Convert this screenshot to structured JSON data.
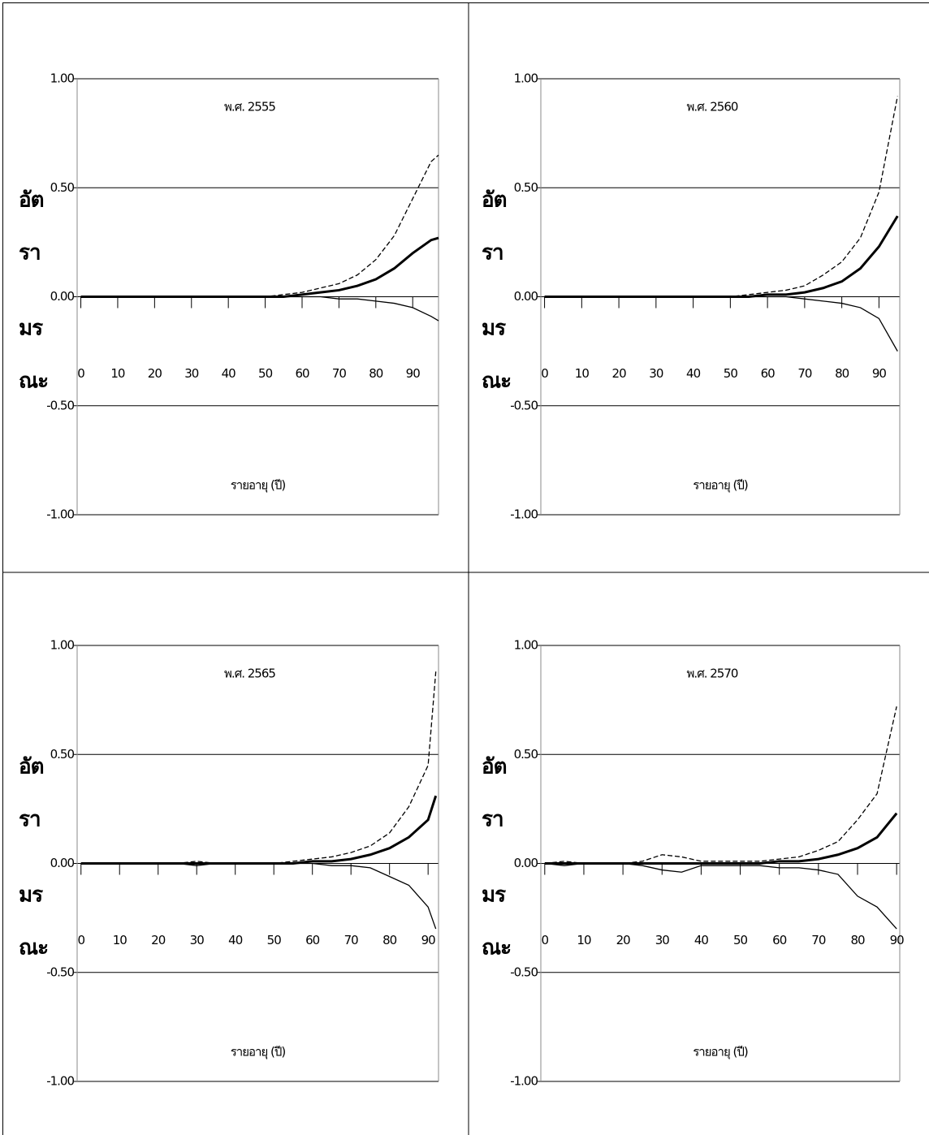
{
  "chart_data": [
    {
      "type": "line",
      "title": "พ.ศ. 2555",
      "xlabel": "รายอายุ (ปี)",
      "ylabel_lines": [
        "อัต",
        "รา",
        "มร",
        "ณะ"
      ],
      "x": [
        0,
        5,
        10,
        15,
        20,
        25,
        30,
        35,
        40,
        45,
        50,
        55,
        60,
        65,
        70,
        75,
        80,
        85,
        90,
        95,
        97
      ],
      "xlim": [
        -1,
        97
      ],
      "xticks": [
        0,
        10,
        20,
        30,
        40,
        50,
        60,
        70,
        80,
        90
      ],
      "ylim": [
        -1,
        1
      ],
      "yticks": [
        {
          "value": -1,
          "label": "-1.00"
        },
        {
          "value": -0.5,
          "label": "-0.50"
        },
        {
          "value": 0,
          "label": "0.00"
        },
        {
          "value": 0.5,
          "label": "0.50"
        },
        {
          "value": 1,
          "label": "1.00"
        }
      ],
      "grid": true,
      "series": [
        {
          "color": "#000000",
          "line_style": "dashed",
          "values": [
            0,
            0,
            0,
            0,
            0,
            0,
            0,
            0,
            0,
            0,
            0,
            0.01,
            0.02,
            0.04,
            0.06,
            0.1,
            0.17,
            0.28,
            0.45,
            0.62,
            0.65
          ]
        },
        {
          "color": "#000000",
          "line_style": "thick",
          "values": [
            0,
            0,
            0,
            0,
            0,
            0,
            0,
            0,
            0,
            0,
            0,
            0,
            0.01,
            0.02,
            0.03,
            0.05,
            0.08,
            0.13,
            0.2,
            0.26,
            0.27
          ]
        },
        {
          "color": "#000000",
          "line_style": "thin",
          "values": [
            0,
            0,
            0,
            0,
            0,
            0,
            0,
            0,
            0,
            0,
            0,
            0,
            0,
            0,
            -0.01,
            -0.01,
            -0.02,
            -0.03,
            -0.05,
            -0.09,
            -0.11
          ]
        }
      ]
    },
    {
      "type": "line",
      "title": "พ.ศ. 2560",
      "xlabel": "รายอายุ (ปี)",
      "ylabel_lines": [
        "อัต",
        "รา",
        "มร",
        "ณะ"
      ],
      "x": [
        0,
        5,
        10,
        15,
        20,
        25,
        30,
        35,
        40,
        45,
        50,
        55,
        60,
        65,
        70,
        75,
        80,
        85,
        90,
        95
      ],
      "xlim": [
        -1,
        95.6
      ],
      "xticks": [
        0,
        10,
        20,
        30,
        40,
        50,
        60,
        70,
        80,
        90
      ],
      "ylim": [
        -1,
        1
      ],
      "yticks": [
        {
          "value": -1,
          "label": "-1.00"
        },
        {
          "value": -0.5,
          "label": "-0.50"
        },
        {
          "value": 0,
          "label": "0.00"
        },
        {
          "value": 0.5,
          "label": "0.50"
        },
        {
          "value": 1,
          "label": "1.00"
        }
      ],
      "grid": true,
      "series": [
        {
          "color": "#000000",
          "line_style": "dashed",
          "values": [
            0,
            0,
            0,
            0,
            0,
            0,
            0,
            0,
            0,
            0,
            0,
            0.01,
            0.02,
            0.03,
            0.05,
            0.1,
            0.16,
            0.27,
            0.48,
            0.92
          ]
        },
        {
          "color": "#000000",
          "line_style": "thick",
          "values": [
            0,
            0,
            0,
            0,
            0,
            0,
            0,
            0,
            0,
            0,
            0,
            0,
            0.01,
            0.01,
            0.02,
            0.04,
            0.07,
            0.13,
            0.23,
            0.37
          ]
        },
        {
          "color": "#000000",
          "line_style": "thin",
          "values": [
            0,
            0,
            0,
            0,
            0,
            0,
            0,
            0,
            0,
            0,
            0,
            0,
            0,
            0,
            -0.01,
            -0.02,
            -0.03,
            -0.05,
            -0.1,
            -0.25
          ]
        }
      ]
    },
    {
      "type": "line",
      "title": "พ.ศ. 2565",
      "xlabel": "รายอายุ (ปี)",
      "ylabel_lines": [
        "อัต",
        "รา",
        "มร",
        "ณะ"
      ],
      "x": [
        0,
        5,
        10,
        15,
        20,
        25,
        30,
        35,
        40,
        45,
        50,
        55,
        60,
        65,
        70,
        75,
        80,
        85,
        90,
        92
      ],
      "xlim": [
        -1,
        92.7
      ],
      "xticks": [
        0,
        10,
        20,
        30,
        40,
        50,
        60,
        70,
        80,
        90
      ],
      "ylim": [
        -1,
        1
      ],
      "yticks": [
        {
          "value": -1,
          "label": "-1.00"
        },
        {
          "value": -0.5,
          "label": "-0.50"
        },
        {
          "value": 0,
          "label": "0.00"
        },
        {
          "value": 0.5,
          "label": "0.50"
        },
        {
          "value": 1,
          "label": "1.00"
        }
      ],
      "grid": true,
      "series": [
        {
          "color": "#000000",
          "line_style": "dashed",
          "values": [
            0,
            0,
            0,
            0,
            0,
            0,
            0.01,
            0,
            0,
            0,
            0,
            0.01,
            0.02,
            0.03,
            0.05,
            0.08,
            0.14,
            0.26,
            0.45,
            0.88
          ]
        },
        {
          "color": "#000000",
          "line_style": "thick",
          "values": [
            0,
            0,
            0,
            0,
            0,
            0,
            0,
            0,
            0,
            0,
            0,
            0,
            0.01,
            0.01,
            0.02,
            0.04,
            0.07,
            0.12,
            0.2,
            0.31
          ]
        },
        {
          "color": "#000000",
          "line_style": "thin",
          "values": [
            0,
            0,
            0,
            0,
            0,
            0,
            -0.01,
            0,
            0,
            0,
            0,
            0,
            0,
            -0.01,
            -0.01,
            -0.02,
            -0.06,
            -0.1,
            -0.2,
            -0.3
          ]
        }
      ]
    },
    {
      "type": "line",
      "title": "พ.ศ. 2570",
      "xlabel": "รายอายุ (ปี)",
      "ylabel_lines": [
        "อัต",
        "รา",
        "มร",
        "ณะ"
      ],
      "x": [
        0,
        5,
        10,
        15,
        20,
        25,
        30,
        35,
        40,
        45,
        50,
        55,
        60,
        65,
        70,
        75,
        80,
        85,
        90
      ],
      "xlim": [
        -1,
        90.8
      ],
      "xticks": [
        0,
        10,
        20,
        30,
        40,
        50,
        60,
        70,
        80,
        90
      ],
      "ylim": [
        -1,
        1
      ],
      "yticks": [
        {
          "value": -1,
          "label": "-1.00"
        },
        {
          "value": -0.5,
          "label": "-0.50"
        },
        {
          "value": 0,
          "label": "0.00"
        },
        {
          "value": 0.5,
          "label": "0.50"
        },
        {
          "value": 1,
          "label": "1.00"
        }
      ],
      "grid": true,
      "series": [
        {
          "color": "#000000",
          "line_style": "dashed",
          "values": [
            0,
            0.01,
            0,
            0,
            0,
            0.01,
            0.04,
            0.03,
            0.01,
            0.01,
            0.01,
            0.01,
            0.02,
            0.03,
            0.06,
            0.1,
            0.2,
            0.32,
            0.72
          ]
        },
        {
          "color": "#000000",
          "line_style": "thick",
          "values": [
            0,
            0,
            0,
            0,
            0,
            0,
            0,
            0,
            0,
            0,
            0,
            0,
            0.01,
            0.01,
            0.02,
            0.04,
            0.07,
            0.12,
            0.23
          ]
        },
        {
          "color": "#000000",
          "line_style": "thin",
          "values": [
            0,
            -0.01,
            0,
            0,
            0,
            -0.01,
            -0.03,
            -0.04,
            -0.01,
            -0.01,
            -0.01,
            -0.01,
            -0.02,
            -0.02,
            -0.03,
            -0.05,
            -0.15,
            -0.2,
            -0.3
          ]
        }
      ]
    }
  ]
}
